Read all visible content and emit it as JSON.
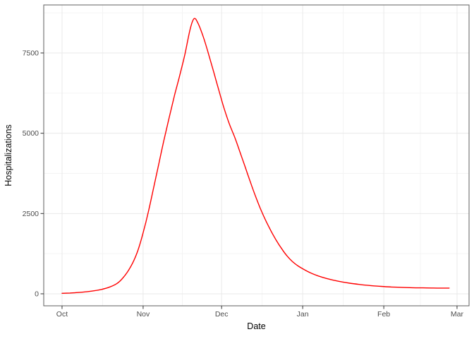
{
  "figure": {
    "background": "#ffffff",
    "colors": {
      "line": "#ff0000",
      "grid_major": "#e9e9e9",
      "grid_minor": "#f4f4f4",
      "panel_border": "#5f5f5f",
      "panel_fill": "#ffffff",
      "tick_mark": "#333333",
      "tick_label": "#4d4d4d",
      "axis_title": "#000000"
    }
  },
  "chart_data": {
    "type": "line",
    "title": "",
    "xlabel": "Date",
    "ylabel": "Hospitalizations",
    "grid": "on",
    "legend": "none",
    "x_axis": {
      "unit": "days from Oct 1",
      "range": [
        -7,
        155.6
      ],
      "ticks": [
        {
          "label": "Oct",
          "day": 0
        },
        {
          "label": "Nov",
          "day": 31
        },
        {
          "label": "Dec",
          "day": 61
        },
        {
          "label": "Jan",
          "day": 92
        },
        {
          "label": "Feb",
          "day": 123
        },
        {
          "label": "Mar",
          "day": 151
        }
      ],
      "minor_days": [
        15.5,
        46,
        76.5,
        107.5,
        137
      ]
    },
    "y_axis": {
      "range": [
        -374,
        8995
      ],
      "ticks": [
        {
          "label": "0",
          "value": 0
        },
        {
          "label": "2500",
          "value": 2500
        },
        {
          "label": "5000",
          "value": 5000
        },
        {
          "label": "7500",
          "value": 7500
        }
      ],
      "minor_values": [
        1250,
        3750,
        6250,
        8750
      ]
    },
    "series": [
      {
        "name": "hospitalizations",
        "color": "#ff0000",
        "peak": {
          "day": 50.5,
          "value": 8570,
          "approx_date": "Nov 20"
        },
        "points": [
          [
            0,
            15
          ],
          [
            3,
            25
          ],
          [
            6,
            40
          ],
          [
            9,
            62
          ],
          [
            12,
            92
          ],
          [
            15,
            135
          ],
          [
            18,
            205
          ],
          [
            21,
            320
          ],
          [
            23,
            470
          ],
          [
            25,
            680
          ],
          [
            27,
            960
          ],
          [
            29,
            1350
          ],
          [
            31,
            1900
          ],
          [
            33,
            2550
          ],
          [
            35,
            3300
          ],
          [
            37,
            4050
          ],
          [
            39,
            4800
          ],
          [
            41,
            5500
          ],
          [
            43,
            6180
          ],
          [
            45,
            6800
          ],
          [
            47,
            7470
          ],
          [
            49,
            8250
          ],
          [
            50.5,
            8570
          ],
          [
            52,
            8420
          ],
          [
            54,
            8000
          ],
          [
            56,
            7470
          ],
          [
            58,
            6900
          ],
          [
            60,
            6320
          ],
          [
            62,
            5760
          ],
          [
            64,
            5280
          ],
          [
            66,
            4880
          ],
          [
            68,
            4420
          ],
          [
            70,
            3950
          ],
          [
            72,
            3480
          ],
          [
            74,
            3030
          ],
          [
            76,
            2620
          ],
          [
            78,
            2260
          ],
          [
            80,
            1940
          ],
          [
            82,
            1650
          ],
          [
            84,
            1400
          ],
          [
            86,
            1180
          ],
          [
            88,
            1010
          ],
          [
            90,
            880
          ],
          [
            92,
            780
          ],
          [
            95,
            650
          ],
          [
            98,
            555
          ],
          [
            101,
            480
          ],
          [
            104,
            420
          ],
          [
            107,
            370
          ],
          [
            110,
            330
          ],
          [
            114,
            288
          ],
          [
            118,
            256
          ],
          [
            122,
            230
          ],
          [
            126,
            212
          ],
          [
            130,
            199
          ],
          [
            134,
            190
          ],
          [
            138,
            184
          ],
          [
            142,
            180
          ],
          [
            145,
            178
          ],
          [
            148,
            177
          ]
        ]
      }
    ]
  }
}
